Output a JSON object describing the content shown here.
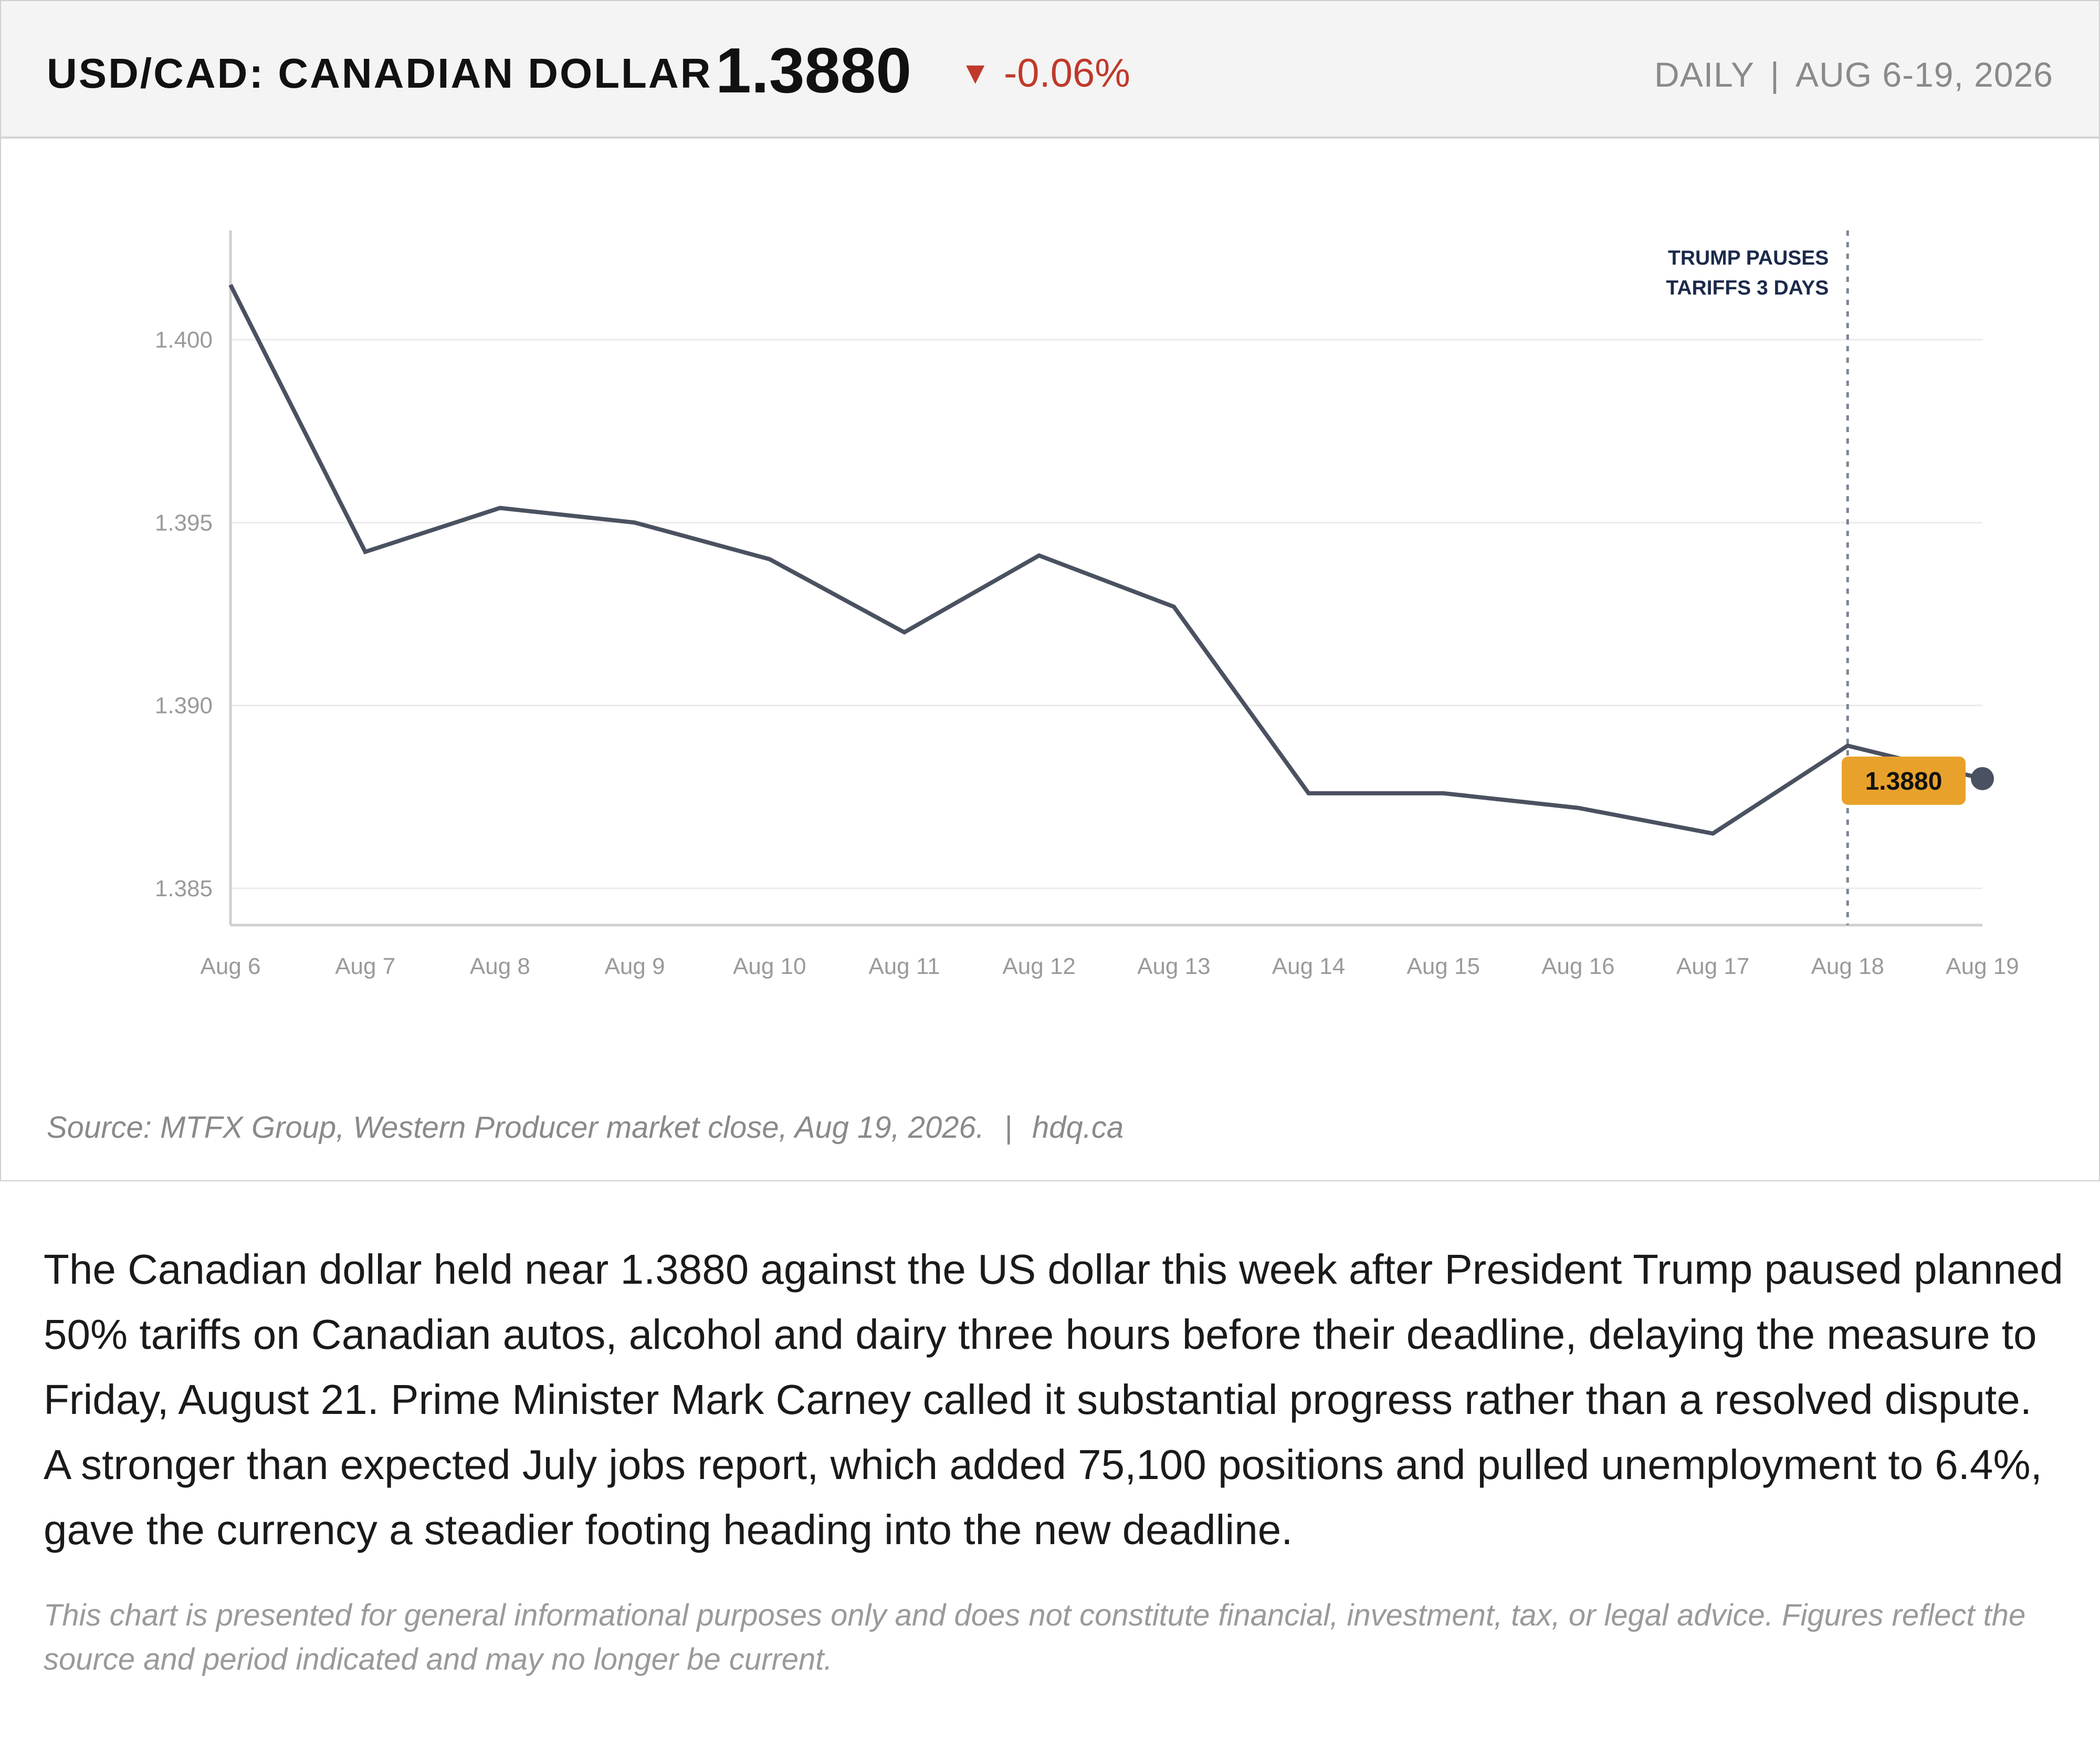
{
  "header": {
    "pair_title": "USD/CAD: CANADIAN DOLLAR",
    "rate": "1.3880",
    "change_arrow": "▼",
    "change": "-0.06%",
    "frequency": "DAILY",
    "separator": "|",
    "date_range": "AUG 6-19, 2026"
  },
  "colors": {
    "line": "#4a5160",
    "down": "#c0392b",
    "badge": "#e8a22b",
    "annotation": "#1b2a4a"
  },
  "chart_data": {
    "type": "line",
    "title": "",
    "xlabel": "",
    "ylabel": "",
    "categories": [
      "Aug 6",
      "Aug 7",
      "Aug 8",
      "Aug 9",
      "Aug 10",
      "Aug 11",
      "Aug 12",
      "Aug 13",
      "Aug 14",
      "Aug 15",
      "Aug 16",
      "Aug 17",
      "Aug 18",
      "Aug 19"
    ],
    "values": [
      1.4015,
      1.3942,
      1.3954,
      1.395,
      1.394,
      1.392,
      1.3941,
      1.3927,
      1.3876,
      1.3876,
      1.3872,
      1.3865,
      1.3889,
      1.388
    ],
    "yticks": [
      1.385,
      1.39,
      1.395,
      1.4
    ],
    "ytick_labels": [
      "1.385",
      "1.390",
      "1.395",
      "1.400"
    ],
    "ylim": [
      1.384,
      1.403
    ],
    "grid": true,
    "annotation": {
      "at": "Aug 18",
      "lines": [
        "TRUMP PAUSES",
        "TARIFFS 3 DAYS"
      ]
    },
    "last_value_label": "1.3880"
  },
  "source": {
    "text": "Source: MTFX Group, Western Producer market close, Aug 19, 2026.",
    "separator": "|",
    "site": "hdq.ca"
  },
  "article": "The Canadian dollar held near 1.3880 against the US dollar this week after President Trump paused planned 50% tariffs on Canadian autos, alcohol and dairy three hours before their deadline, delaying the measure to Friday, August 21. Prime Minister Mark Carney called it substantial progress rather than a resolved dispute. A stronger than expected July jobs report, which added 75,100 positions and pulled unemployment to 6.4%, gave the currency a steadier footing heading into the new deadline.",
  "disclaimer": "This chart is presented for general informational purposes only and does not constitute financial, investment, tax, or legal advice. Figures reflect the source and period indicated and may no longer be current."
}
